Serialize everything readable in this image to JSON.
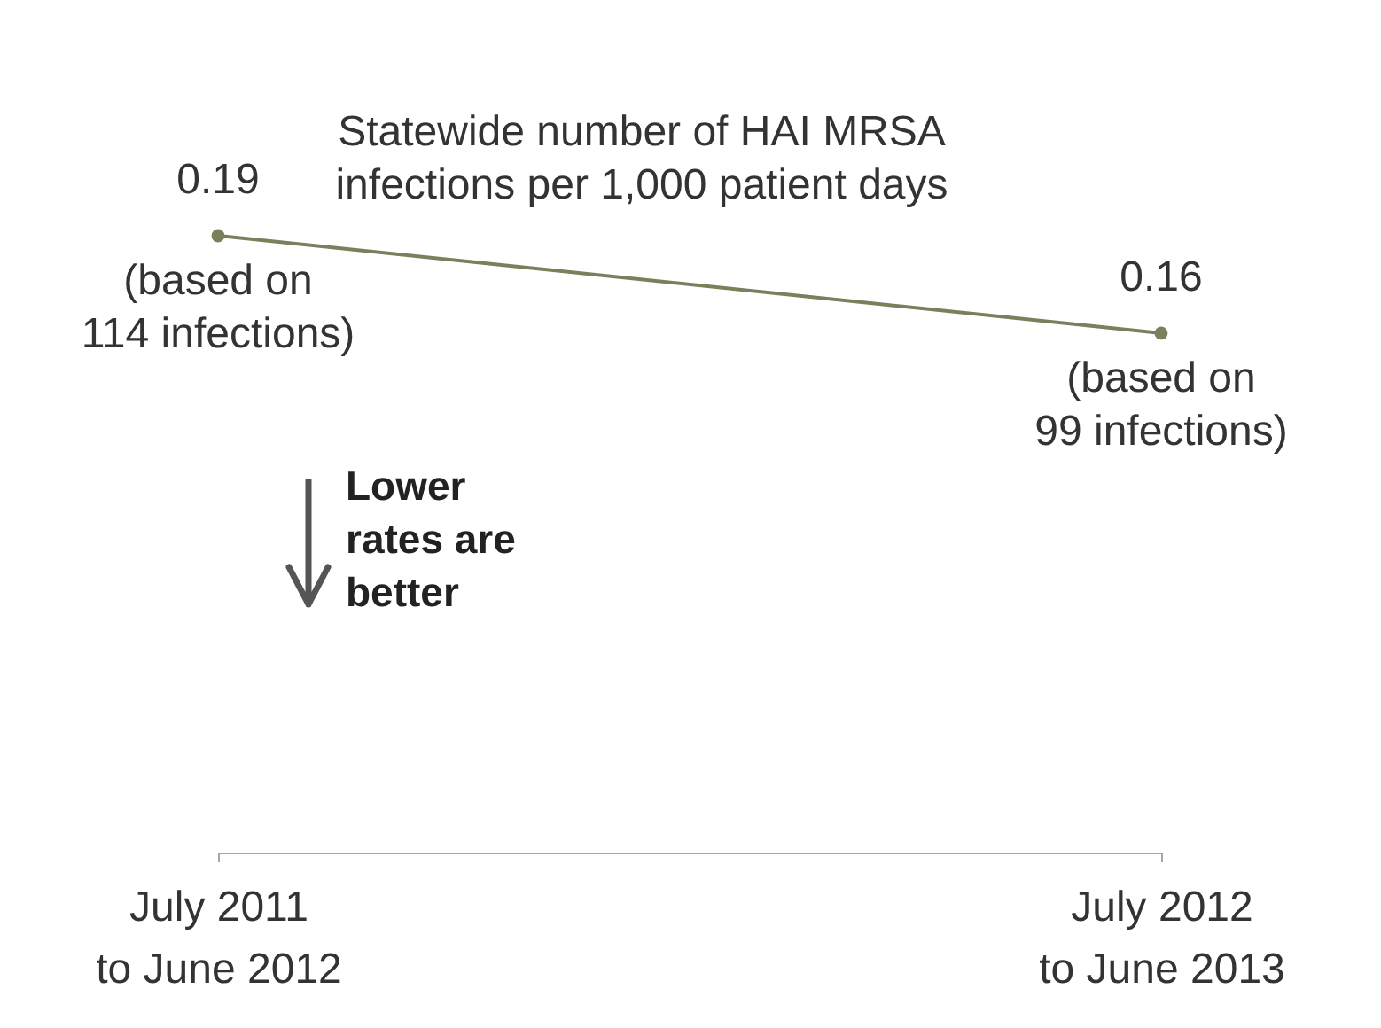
{
  "chart_data": {
    "type": "line",
    "title": "Statewide number of HAI MRSA\ninfections per 1,000 patient days",
    "categories": [
      "July 2011\nto June 2012",
      "July 2012\nto June 2013"
    ],
    "series": [
      {
        "color": "#7b7f5b",
        "values": [
          0.19,
          0.16
        ]
      }
    ],
    "tick_labels": "x",
    "data_labels": true,
    "marker": "circle",
    "line_style": "solid",
    "annotations": [
      {
        "text": "(based on\n114 infections)",
        "x": "July 2011\nto June 2012",
        "y": 0.19
      },
      {
        "text": "(based on\n99 infections)",
        "x": "July 2012\nto June 2013",
        "y": 0.16
      },
      "Lower\nrates are\nbetter"
    ]
  }
}
